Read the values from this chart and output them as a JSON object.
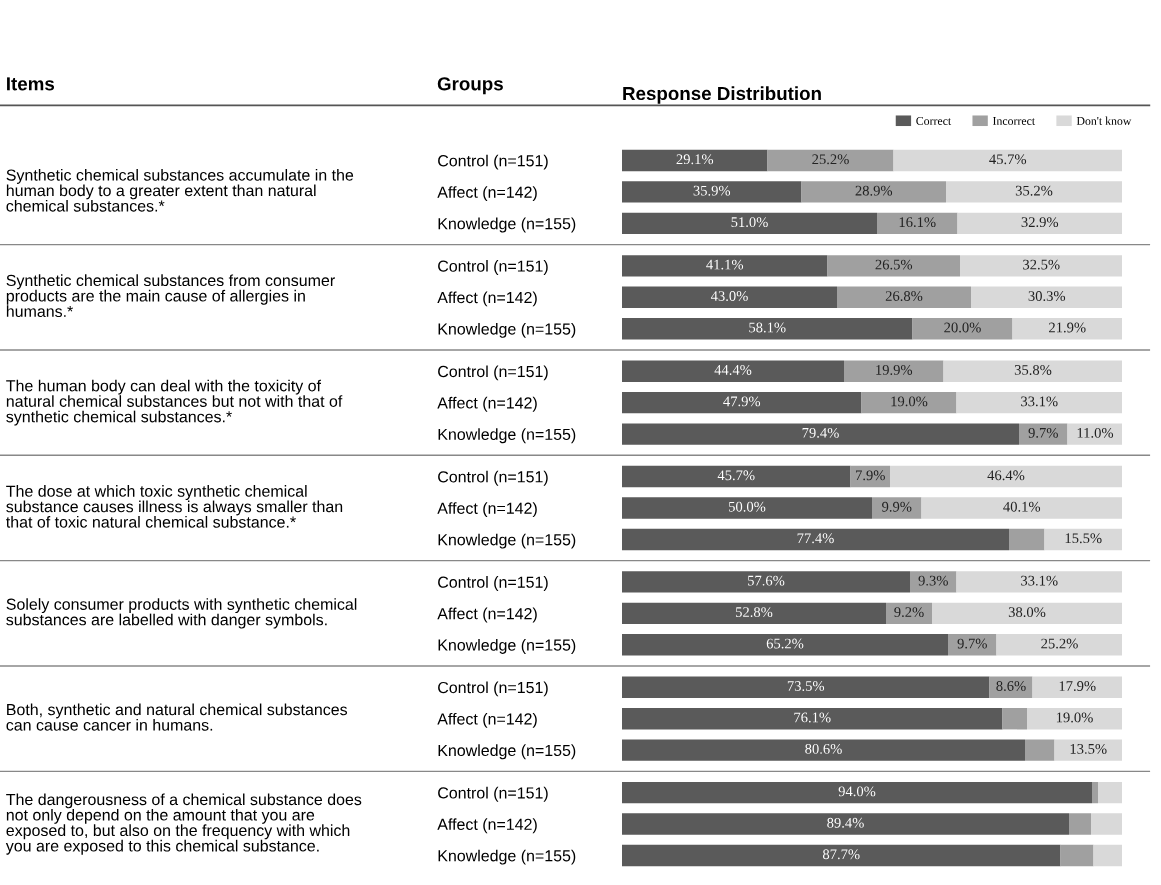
{
  "chart_data": {
    "type": "bar",
    "orientation": "horizontal",
    "stacked": true,
    "title": "Response Distribution",
    "categories": [
      "Control (n=151)",
      "Affect (n=142)",
      "Knowledge (n=155)",
      "Control (n=151)",
      "Affect (n=142)",
      "Knowledge (n=155)",
      "Control (n=151)",
      "Affect (n=142)",
      "Knowledge (n=155)",
      "Control (n=151)",
      "Affect (n=142)",
      "Knowledge (n=155)",
      "Control (n=151)",
      "Affect (n=142)",
      "Knowledge (n=155)",
      "Control (n=151)",
      "Affect (n=142)",
      "Knowledge (n=155)",
      "Control (n=151)",
      "Affect (n=142)",
      "Knowledge (n=155)"
    ],
    "series": [
      {
        "name": "Correct",
        "color": "#5a5a5a",
        "values": [
          29.1,
          35.9,
          51.0,
          41.1,
          43.0,
          58.1,
          44.4,
          47.9,
          79.4,
          45.7,
          50.0,
          77.4,
          57.6,
          52.8,
          65.2,
          73.5,
          76.1,
          80.6,
          94.0,
          89.4,
          87.7
        ],
        "value_labels": [
          "29.1%",
          "35.9%",
          "51.0%",
          "41.1%",
          "43.0%",
          "58.1%",
          "44.4%",
          "47.9%",
          "79.4%",
          "45.7%",
          "50.0%",
          "77.4%",
          "57.6%",
          "52.8%",
          "65.2%",
          "73.5%",
          "76.1%",
          "80.6%",
          "94.0%",
          "89.4%",
          "87.7%"
        ]
      },
      {
        "name": "Incorrect",
        "color": "#a0a0a0",
        "values": [
          25.2,
          28.9,
          16.1,
          26.5,
          26.8,
          20.0,
          19.9,
          19.0,
          9.7,
          7.9,
          9.9,
          7.1,
          9.3,
          9.2,
          9.7,
          8.6,
          4.9,
          5.9,
          1.2,
          4.4,
          6.6
        ],
        "value_labels": [
          "25.2%",
          "28.9%",
          "16.1%",
          "26.5%",
          "26.8%",
          "20.0%",
          "19.9%",
          "19.0%",
          "9.7%",
          "7.9%",
          "9.9%",
          null,
          "9.3%",
          "9.2%",
          "9.7%",
          "8.6%",
          null,
          null,
          null,
          null,
          null
        ]
      },
      {
        "name": "Don't know",
        "color": "#d9d9d9",
        "values": [
          45.7,
          35.2,
          32.9,
          32.5,
          30.3,
          21.9,
          35.8,
          33.1,
          11.0,
          46.4,
          40.1,
          15.5,
          33.1,
          38.0,
          25.2,
          17.9,
          19.0,
          13.5,
          4.8,
          6.2,
          5.7
        ],
        "value_labels": [
          "45.7%",
          "35.2%",
          "32.9%",
          "32.5%",
          "30.3%",
          "21.9%",
          "35.8%",
          "33.1%",
          "11.0%",
          "46.4%",
          "40.1%",
          "15.5%",
          "33.1%",
          "38.0%",
          "25.2%",
          "17.9%",
          "19.0%",
          "13.5%",
          null,
          null,
          null
        ]
      }
    ],
    "xlim": [
      0,
      100
    ],
    "tick_labels": "y",
    "grid": false,
    "legend": "top right",
    "annotations": [
      "Items",
      "Groups",
      "Synthetic chemical substances accumulate in the\nhuman body to a greater extent than natural\nchemical substances.*",
      "Synthetic chemical substances from consumer\nproducts are the main cause of allergies in\nhumans.*",
      "The human body can deal with the toxicity of\nnatural chemical substances but not with that of\nsynthetic chemical substances.*",
      "The dose at which toxic synthetic chemical\nsubstance causes illness is always smaller than\nthat of toxic natural chemical substance.*",
      "Solely consumer products with synthetic chemical\nsubstances are labelled with danger symbols.",
      "Both, synthetic and natural chemical substances\ncan cause cancer in humans.",
      "The dangerousness of a chemical substance does\nnot only depend on the amount that you are\nexposed to, but also on the frequency with which\nyou are exposed to this chemical substance."
    ]
  }
}
